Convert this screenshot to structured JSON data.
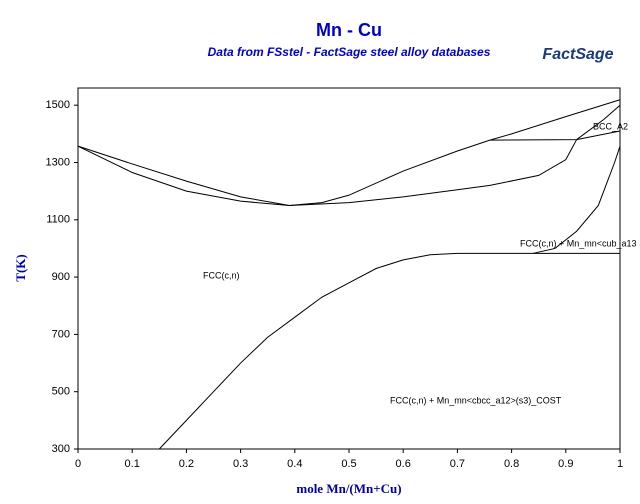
{
  "chart_data": {
    "type": "line",
    "title": "Mn - Cu",
    "subtitle": "Data from FSstel - FactSage steel alloy databases",
    "logo": "FactSage",
    "x_label": "mole Mn/(Mn+Cu)",
    "y_label": "T(K)",
    "xlim": [
      0,
      1
    ],
    "ylim": [
      300,
      1560
    ],
    "xticks": [
      0,
      0.1,
      0.2,
      0.3,
      0.4,
      0.5,
      0.6,
      0.7,
      0.8,
      0.9,
      1
    ],
    "yticks": [
      300,
      500,
      700,
      900,
      1100,
      1300,
      1500
    ],
    "annotations": [
      "FCC(c,n)",
      "FCC(c,n) + Mn_mn<cub_a13",
      "BCC_A2",
      "FCC(c,n) + Mn_mn<cbcc_a12>(s3)_COST"
    ],
    "series": [
      {
        "color": "#000000",
        "x": [
          0,
          0.1,
          0.2,
          0.3,
          0.39,
          0.45,
          0.5,
          0.6,
          0.7,
          0.76,
          0.8,
          0.9,
          1
        ],
        "values": [
          1357,
          1295,
          1235,
          1180,
          1150,
          1160,
          1186,
          1270,
          1340,
          1378,
          1400,
          1460,
          1519
        ]
      },
      {
        "color": "#000000",
        "x": [
          0,
          0.1,
          0.2,
          0.3,
          0.39,
          0.5,
          0.6,
          0.7,
          0.76,
          0.85,
          0.9,
          0.92
        ],
        "values": [
          1357,
          1265,
          1200,
          1165,
          1150,
          1160,
          1180,
          1205,
          1220,
          1255,
          1310,
          1380
        ]
      },
      {
        "color": "#000000",
        "x": [
          0.76,
          0.92,
          1
        ],
        "values": [
          1378,
          1380,
          1410
        ]
      },
      {
        "color": "#000000",
        "x": [
          0.92,
          0.97,
          1
        ],
        "values": [
          1380,
          1450,
          1500
        ]
      },
      {
        "color": "#000000",
        "x": [
          0.15,
          0.2,
          0.25,
          0.3,
          0.35,
          0.4,
          0.45,
          0.5,
          0.55,
          0.6,
          0.65,
          0.7,
          0.84,
          1
        ],
        "values": [
          300,
          400,
          500,
          600,
          690,
          760,
          830,
          880,
          930,
          960,
          978,
          983,
          983,
          983
        ]
      },
      {
        "color": "#000000",
        "x": [
          0.84,
          0.88,
          0.92,
          0.96,
          0.99,
          1
        ],
        "values": [
          983,
          1000,
          1060,
          1150,
          1300,
          1357
        ]
      }
    ]
  }
}
